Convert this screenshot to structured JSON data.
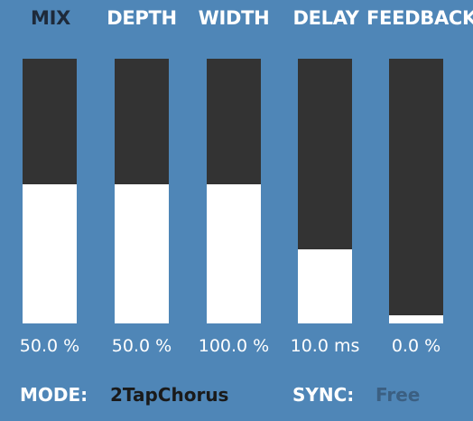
{
  "params": [
    {
      "label": "MIX",
      "value": "50.0 %",
      "level": 0.525,
      "active": true
    },
    {
      "label": "DEPTH",
      "value": "50.0 %",
      "level": 0.525,
      "active": false
    },
    {
      "label": "WIDTH",
      "value": "100.0 %",
      "level": 0.525,
      "active": false
    },
    {
      "label": "DELAY",
      "value": "10.0 ms",
      "level": 0.28,
      "active": false
    },
    {
      "label": "FEEDBACK",
      "value": "0.0 %",
      "level": 0.03,
      "active": false
    }
  ],
  "footer": {
    "mode_label": "MODE:",
    "mode_value": "2TapChorus",
    "sync_label": "SYNC:",
    "sync_value": "Free"
  },
  "colors": {
    "background": "#4f86b7",
    "slider_track": "#333333",
    "slider_fill": "#ffffff",
    "active_label": "#1e2a3a",
    "mode_value": "#1a1a1a",
    "sync_value": "#3b5f82"
  }
}
